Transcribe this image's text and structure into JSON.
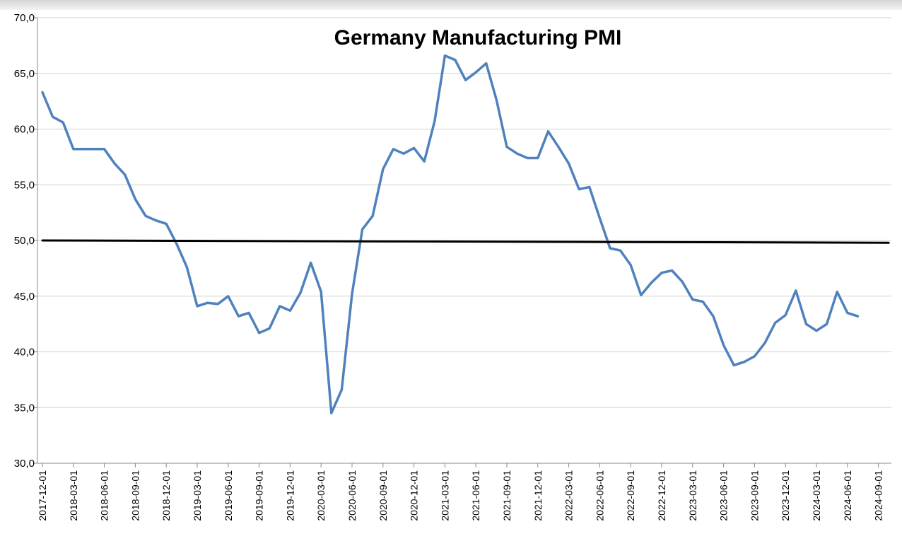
{
  "chart_data": {
    "type": "line",
    "title": "Germany Manufacturing PMI",
    "xlabel": "",
    "ylabel": "",
    "ylim": [
      30,
      70
    ],
    "y_ticks": [
      "30,0",
      "35,0",
      "40,0",
      "45,0",
      "50,0",
      "55,0",
      "60,0",
      "65,0",
      "70,0"
    ],
    "y_tick_values": [
      30,
      35,
      40,
      45,
      50,
      55,
      60,
      65,
      70
    ],
    "x_ticks": [
      "2017-12-01",
      "2018-03-01",
      "2018-06-01",
      "2018-09-01",
      "2018-12-01",
      "2019-03-01",
      "2019-06-01",
      "2019-09-01",
      "2019-12-01",
      "2020-03-01",
      "2020-06-01",
      "2020-09-01",
      "2020-12-01",
      "2021-03-01",
      "2021-06-01",
      "2021-09-01",
      "2021-12-01",
      "2022-03-01",
      "2022-06-01",
      "2022-09-01",
      "2022-12-01",
      "2023-03-01",
      "2023-06-01",
      "2023-09-01",
      "2023-12-01",
      "2024-03-01",
      "2024-06-01",
      "2024-09-01"
    ],
    "grid": true,
    "legend": "none",
    "series": [
      {
        "color": "#4f81bd",
        "x": [
          "2017-12-01",
          "2018-01-01",
          "2018-02-01",
          "2018-03-01",
          "2018-04-01",
          "2018-05-01",
          "2018-06-01",
          "2018-07-01",
          "2018-08-01",
          "2018-09-01",
          "2018-10-01",
          "2018-11-01",
          "2018-12-01",
          "2019-01-01",
          "2019-02-01",
          "2019-03-01",
          "2019-04-01",
          "2019-05-01",
          "2019-06-01",
          "2019-07-01",
          "2019-08-01",
          "2019-09-01",
          "2019-10-01",
          "2019-11-01",
          "2019-12-01",
          "2020-01-01",
          "2020-02-01",
          "2020-03-01",
          "2020-04-01",
          "2020-05-01",
          "2020-06-01",
          "2020-07-01",
          "2020-08-01",
          "2020-09-01",
          "2020-10-01",
          "2020-11-01",
          "2020-12-01",
          "2021-01-01",
          "2021-02-01",
          "2021-03-01",
          "2021-04-01",
          "2021-05-01",
          "2021-06-01",
          "2021-07-01",
          "2021-08-01",
          "2021-09-01",
          "2021-10-01",
          "2021-11-01",
          "2021-12-01",
          "2022-01-01",
          "2022-02-01",
          "2022-03-01",
          "2022-04-01",
          "2022-05-01",
          "2022-06-01",
          "2022-07-01",
          "2022-08-01",
          "2022-09-01",
          "2022-10-01",
          "2022-11-01",
          "2022-12-01",
          "2023-01-01",
          "2023-02-01",
          "2023-03-01",
          "2023-04-01",
          "2023-05-01",
          "2023-06-01",
          "2023-07-01",
          "2023-08-01",
          "2023-09-01",
          "2023-10-01",
          "2023-11-01",
          "2023-12-01",
          "2024-01-01",
          "2024-02-01",
          "2024-03-01",
          "2024-04-01",
          "2024-05-01",
          "2024-06-01",
          "2024-07-01",
          "2024-08-01",
          "2024-09-01"
        ],
        "values": [
          63.3,
          61.1,
          60.6,
          58.2,
          58.2,
          58.2,
          58.2,
          56.9,
          55.9,
          53.7,
          52.2,
          51.8,
          51.5,
          49.7,
          47.6,
          44.1,
          44.4,
          44.3,
          45.0,
          43.2,
          43.5,
          41.7,
          42.1,
          44.1,
          43.7,
          45.3,
          48.0,
          45.4,
          34.5,
          36.6,
          45.2,
          51.0,
          52.2,
          56.4,
          58.2,
          57.8,
          58.3,
          57.1,
          60.7,
          66.6,
          66.2,
          64.4,
          65.1,
          65.9,
          62.6,
          58.4,
          57.8,
          57.4,
          57.4,
          59.8,
          58.4,
          56.9,
          54.6,
          54.8,
          52.0,
          49.3,
          49.1,
          47.8,
          45.1,
          46.2,
          47.1,
          47.3,
          46.3,
          44.7,
          44.5,
          43.2,
          40.6,
          38.8,
          39.1,
          39.6,
          40.8,
          42.6,
          43.3,
          45.5,
          42.5,
          41.9,
          42.5,
          45.4,
          43.5,
          43.2,
          null,
          null
        ]
      },
      {
        "color": "#000000",
        "x": [
          "2017-12-01",
          "2024-10-01"
        ],
        "values": [
          50.0,
          49.8
        ]
      }
    ]
  }
}
